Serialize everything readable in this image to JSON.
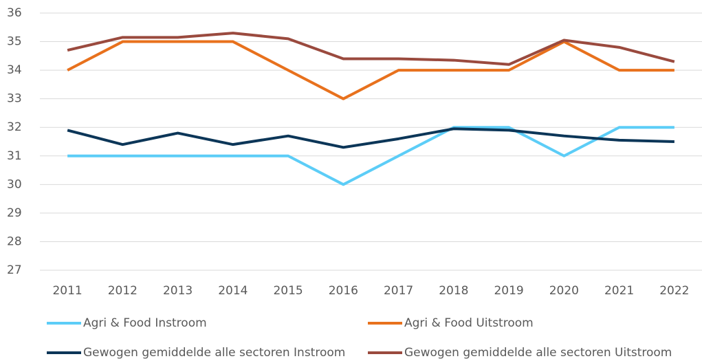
{
  "chart_data": {
    "type": "line",
    "categories": [
      "2011",
      "2012",
      "2013",
      "2014",
      "2015",
      "2016",
      "2017",
      "2018",
      "2019",
      "2020",
      "2021",
      "2022"
    ],
    "series": [
      {
        "name": "Agri & Food Instroom",
        "color": "#5ccdf7",
        "values": [
          31,
          31,
          31,
          31,
          31,
          30,
          31,
          32,
          32,
          31,
          32,
          32
        ]
      },
      {
        "name": "Agri & Food Uitstroom",
        "color": "#e8711d",
        "values": [
          34,
          35,
          35,
          35,
          34,
          33,
          34,
          34,
          34,
          35,
          34,
          34
        ]
      },
      {
        "name": "Gewogen gemiddelde alle sectoren Instroom",
        "color": "#0c3658",
        "values": [
          31.9,
          31.4,
          31.8,
          31.4,
          31.7,
          31.3,
          31.6,
          31.95,
          31.9,
          31.7,
          31.55,
          31.5
        ]
      },
      {
        "name": "Gewogen gemiddelde alle sectoren Uitstroom",
        "color": "#9a4a3e",
        "values": [
          34.7,
          35.15,
          35.15,
          35.3,
          35.1,
          34.4,
          34.4,
          34.35,
          34.2,
          35.05,
          34.8,
          34.3
        ]
      }
    ],
    "ylim": [
      27,
      36
    ],
    "yticks": [
      27,
      28,
      29,
      30,
      31,
      32,
      33,
      34,
      35,
      36
    ],
    "grid": true
  }
}
